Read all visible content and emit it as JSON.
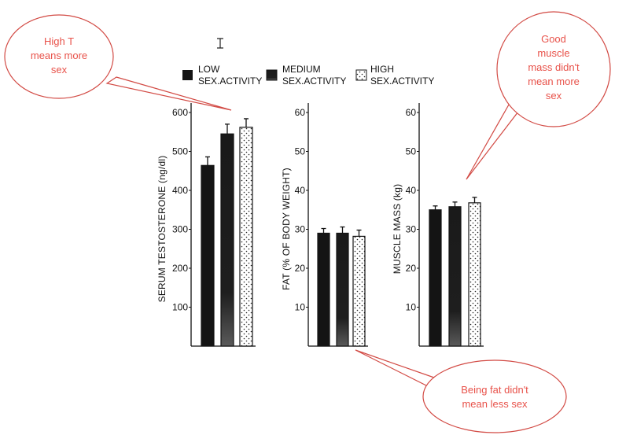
{
  "colors": {
    "bar_dark": "#141414",
    "axis": "#111111",
    "bubble_fill": "#ffffff",
    "bubble_stroke": "#d24a44",
    "bubble_text": "#e8524a"
  },
  "legend": [
    {
      "pattern": "solid-black",
      "line1": "LOW",
      "line2": "SEX.ACTIVITY"
    },
    {
      "pattern": "dark-gradient",
      "line1": "MEDIUM",
      "line2": "SEX.ACTIVITY"
    },
    {
      "pattern": "stippled",
      "line1": "HIGH",
      "line2": "SEX.ACTIVITY"
    }
  ],
  "chart_data": [
    {
      "type": "bar",
      "ylabel": "SERUM TESTOSTERONE (ng/dl)",
      "ylim": [
        0,
        600
      ],
      "yticks": [
        100,
        200,
        300,
        400,
        500,
        600
      ],
      "categories": [
        "LOW SEX.ACTIVITY",
        "MEDIUM SEX.ACTIVITY",
        "HIGH SEX.ACTIVITY"
      ],
      "values": [
        464,
        545,
        562
      ],
      "errors": [
        22,
        25,
        22
      ]
    },
    {
      "type": "bar",
      "ylabel": "FAT (% OF BODY WEIGHT)",
      "ylim": [
        0,
        60
      ],
      "yticks": [
        10,
        20,
        30,
        40,
        50,
        60
      ],
      "categories": [
        "LOW SEX.ACTIVITY",
        "MEDIUM SEX.ACTIVITY",
        "HIGH SEX.ACTIVITY"
      ],
      "values": [
        29,
        29,
        28.2
      ],
      "errors": [
        1.2,
        1.6,
        1.6
      ]
    },
    {
      "type": "bar",
      "ylabel": "MUSCLE MASS (kg)",
      "ylim": [
        0,
        60
      ],
      "yticks": [
        10,
        20,
        30,
        40,
        50,
        60
      ],
      "categories": [
        "LOW SEX.ACTIVITY",
        "MEDIUM SEX.ACTIVITY",
        "HIGH SEX.ACTIVITY"
      ],
      "values": [
        35,
        35.8,
        36.8
      ],
      "errors": [
        1.0,
        1.2,
        1.4
      ]
    }
  ],
  "annotations": [
    {
      "lines": [
        "High T",
        "means more",
        "sex"
      ]
    },
    {
      "lines": [
        "Good",
        "muscle",
        "mass didn't",
        "mean more",
        "sex"
      ]
    },
    {
      "lines": [
        "Being fat didn't",
        "mean less sex"
      ]
    }
  ]
}
